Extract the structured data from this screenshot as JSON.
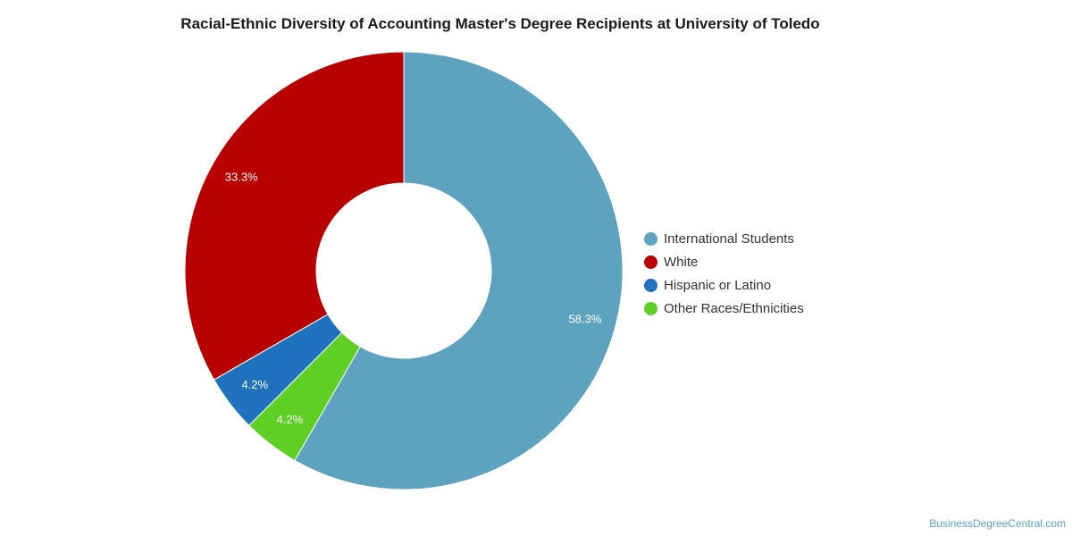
{
  "chart_data": {
    "type": "pie",
    "title": "Racial-Ethnic Diversity of Accounting Master's Degree Recipients at University of Toledo",
    "donut": true,
    "categories": [
      "International Students",
      "White",
      "Hispanic or Latino",
      "Other Races/Ethnicities"
    ],
    "values": [
      58.3,
      33.3,
      4.2,
      4.2
    ],
    "value_labels": [
      "58.3%",
      "33.3%",
      "4.2%",
      "4.2%"
    ],
    "colors": [
      "#5da2bf",
      "#b80000",
      "#1f72be",
      "#5fcf26"
    ],
    "legend_position": "right"
  },
  "source": "BusinessDegreeCentral.com"
}
